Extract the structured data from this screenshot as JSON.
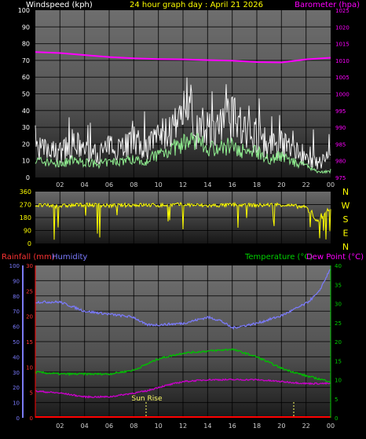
{
  "header": {
    "windspeed_label": "Windspeed (kph)",
    "title": "24 hour graph day : April 21 2026",
    "barometer_label": "Barometer (hpa)"
  },
  "direction_labels": [
    "N",
    "W",
    "S",
    "E",
    "N"
  ],
  "lower_header": {
    "rainfall_label": "Rainfall (mm)",
    "humidity_label": "Humidity",
    "temperature_label": "Temperature (°C)",
    "dewpoint_label": "Dew Point (°C)"
  },
  "sunrise_label": "Sun Rise",
  "colors": {
    "wind_gust": "#ffffff",
    "wind_avg": "#90ee90",
    "barometer": "#ff00ff",
    "direction": "#ffff00",
    "rainfall": "#ff0000",
    "humidity": "#7b7bff",
    "temperature": "#00c000",
    "dewpoint": "#cc00cc",
    "grid": "#000000"
  },
  "chart_data": [
    {
      "type": "line",
      "name": "wind_barometer",
      "x_ticks": [
        "02",
        "04",
        "06",
        "08",
        "10",
        "12",
        "14",
        "16",
        "18",
        "20",
        "22",
        "00"
      ],
      "left_axis": {
        "label": "Windspeed (kph)",
        "ylim": [
          0,
          100
        ],
        "ticks": [
          0,
          10,
          20,
          30,
          40,
          50,
          60,
          70,
          80,
          90,
          100
        ]
      },
      "right_axis": {
        "label": "Barometer (hpa)",
        "ylim": [
          975,
          1025
        ],
        "ticks": [
          975,
          980,
          985,
          990,
          995,
          1000,
          1005,
          1010,
          1015,
          1020,
          1025
        ]
      },
      "series": [
        {
          "name": "Barometer (hpa)",
          "axis": "right",
          "x": [
            0,
            2,
            4,
            6,
            8,
            10,
            12,
            14,
            16,
            18,
            20,
            22,
            24
          ],
          "y": [
            1012.5,
            1012.2,
            1011.6,
            1011.0,
            1010.6,
            1010.4,
            1010.3,
            1010.1,
            1009.9,
            1009.5,
            1009.4,
            1010.3,
            1010.8
          ]
        },
        {
          "name": "Wind gust",
          "axis": "left",
          "x": [
            0,
            1,
            2,
            3,
            4,
            5,
            6,
            7,
            8,
            9,
            10,
            11,
            12,
            12.5,
            13,
            14,
            15,
            16,
            17,
            18,
            19,
            20,
            21,
            22,
            23,
            24
          ],
          "y": [
            18,
            16,
            15,
            20,
            17,
            14,
            18,
            20,
            21,
            18,
            24,
            28,
            30,
            45,
            30,
            30,
            28,
            38,
            26,
            26,
            18,
            20,
            16,
            12,
            8,
            14
          ]
        },
        {
          "name": "Wind average",
          "axis": "left",
          "x": [
            0,
            1,
            2,
            3,
            4,
            5,
            6,
            7,
            8,
            9,
            10,
            11,
            12,
            13,
            14,
            15,
            16,
            17,
            18,
            19,
            20,
            21,
            22,
            23,
            24
          ],
          "y": [
            10,
            9,
            8,
            10,
            9,
            8,
            9,
            10,
            11,
            10,
            14,
            17,
            20,
            21,
            18,
            17,
            20,
            15,
            16,
            11,
            13,
            9,
            7,
            3,
            4
          ]
        }
      ]
    },
    {
      "type": "line",
      "name": "wind_direction",
      "x_ticks": [
        "02",
        "04",
        "06",
        "08",
        "10",
        "12",
        "14",
        "16",
        "18",
        "20",
        "22",
        "00"
      ],
      "left_axis": {
        "ylim": [
          0,
          360
        ],
        "ticks": [
          0,
          90,
          180,
          270,
          360
        ]
      },
      "series": [
        {
          "name": "Wind direction",
          "x": [
            0,
            2,
            4,
            6,
            8,
            10,
            12,
            14,
            16,
            18,
            20,
            22,
            23,
            24
          ],
          "y": [
            265,
            260,
            270,
            262,
            268,
            265,
            270,
            262,
            268,
            265,
            270,
            250,
            150,
            240
          ]
        }
      ]
    },
    {
      "type": "line",
      "name": "rain_humidity_temperature",
      "x_ticks": [
        "02",
        "04",
        "06",
        "08",
        "10",
        "12",
        "14",
        "16",
        "18",
        "20",
        "22",
        "00"
      ],
      "left_axis_humidity": {
        "ylim": [
          0,
          100
        ],
        "ticks": [
          0,
          10,
          20,
          30,
          40,
          50,
          60,
          70,
          80,
          90,
          100
        ]
      },
      "left_axis_rainfall": {
        "ylim": [
          0,
          30
        ],
        "ticks": [
          0,
          5,
          10,
          15,
          20,
          25,
          30
        ]
      },
      "right_axis_temperature": {
        "ylim": [
          0,
          40
        ],
        "ticks": [
          0,
          5,
          10,
          15,
          20,
          25,
          30,
          35,
          40
        ]
      },
      "series": [
        {
          "name": "Humidity",
          "axis": "humidity",
          "x": [
            0,
            2,
            4,
            6,
            8,
            9,
            10,
            12,
            14,
            15,
            16,
            18,
            20,
            22,
            23,
            24
          ],
          "y": [
            76,
            76,
            70,
            68,
            66,
            61,
            61,
            62,
            66,
            64,
            59,
            62,
            67,
            75,
            82,
            98
          ]
        },
        {
          "name": "Temperature (°C)",
          "axis": "temperature",
          "x": [
            0,
            2,
            4,
            6,
            8,
            9,
            10,
            12,
            14,
            16,
            18,
            20,
            22,
            24
          ],
          "y": [
            12,
            11.5,
            11.5,
            11.5,
            12.5,
            14,
            15.5,
            17,
            17.5,
            18,
            16,
            13,
            11,
            9.5
          ]
        },
        {
          "name": "Dew Point (°C)",
          "axis": "temperature",
          "x": [
            0,
            2,
            4,
            6,
            8,
            9,
            10,
            12,
            14,
            16,
            18,
            20,
            22,
            24
          ],
          "y": [
            7,
            6.5,
            5.5,
            5.5,
            6.5,
            7,
            8,
            9.5,
            10,
            10,
            10,
            9.5,
            9,
            9
          ]
        },
        {
          "name": "Rainfall (mm)",
          "axis": "rainfall",
          "x": [
            0,
            24
          ],
          "y": [
            0,
            0
          ]
        }
      ],
      "markers": [
        {
          "label": "Sun Rise",
          "x": 9
        },
        {
          "label": "",
          "x": 21
        }
      ]
    }
  ]
}
